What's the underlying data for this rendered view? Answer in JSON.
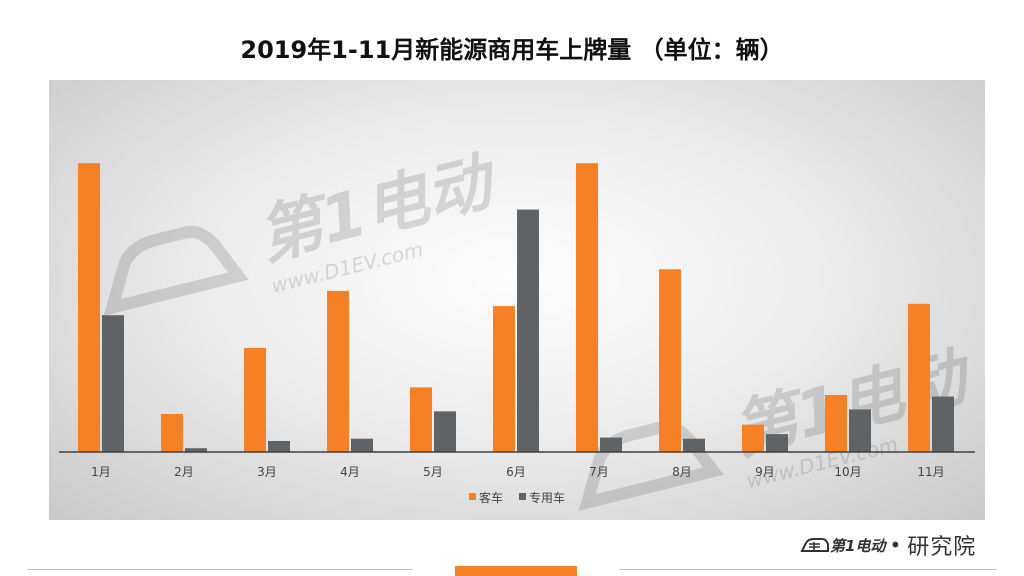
{
  "chart_data": {
    "type": "bar",
    "title": "2019年1-11月新能源商用车上牌量 （单位：辆）",
    "xlabel": "",
    "ylabel": "",
    "categories": [
      "1月",
      "2月",
      "3月",
      "4月",
      "5月",
      "6月",
      "7月",
      "8月",
      "9月",
      "10月",
      "11月"
    ],
    "series": [
      {
        "name": "客车",
        "color": "#f58025",
        "values": [
          7600,
          1000,
          2740,
          4240,
          1700,
          3840,
          7600,
          4810,
          720,
          1500,
          3900
        ]
      },
      {
        "name": "专用车",
        "color": "#5f6366",
        "values": [
          3600,
          100,
          290,
          350,
          1070,
          6380,
          380,
          350,
          470,
          1120,
          1460
        ]
      }
    ],
    "ylim": [
      0,
      8000
    ],
    "y_axis_visible": false,
    "grid": false,
    "legend_position": "bottom"
  },
  "watermark": {
    "text": "第1电动",
    "url": "www.D1EV.com"
  },
  "brand": {
    "logo": "第1电动",
    "separator": "•",
    "suffix": "研究院"
  },
  "colors": {
    "accent": "#f58025",
    "axis": "#404040",
    "footer_line": "#bdbdbd"
  }
}
